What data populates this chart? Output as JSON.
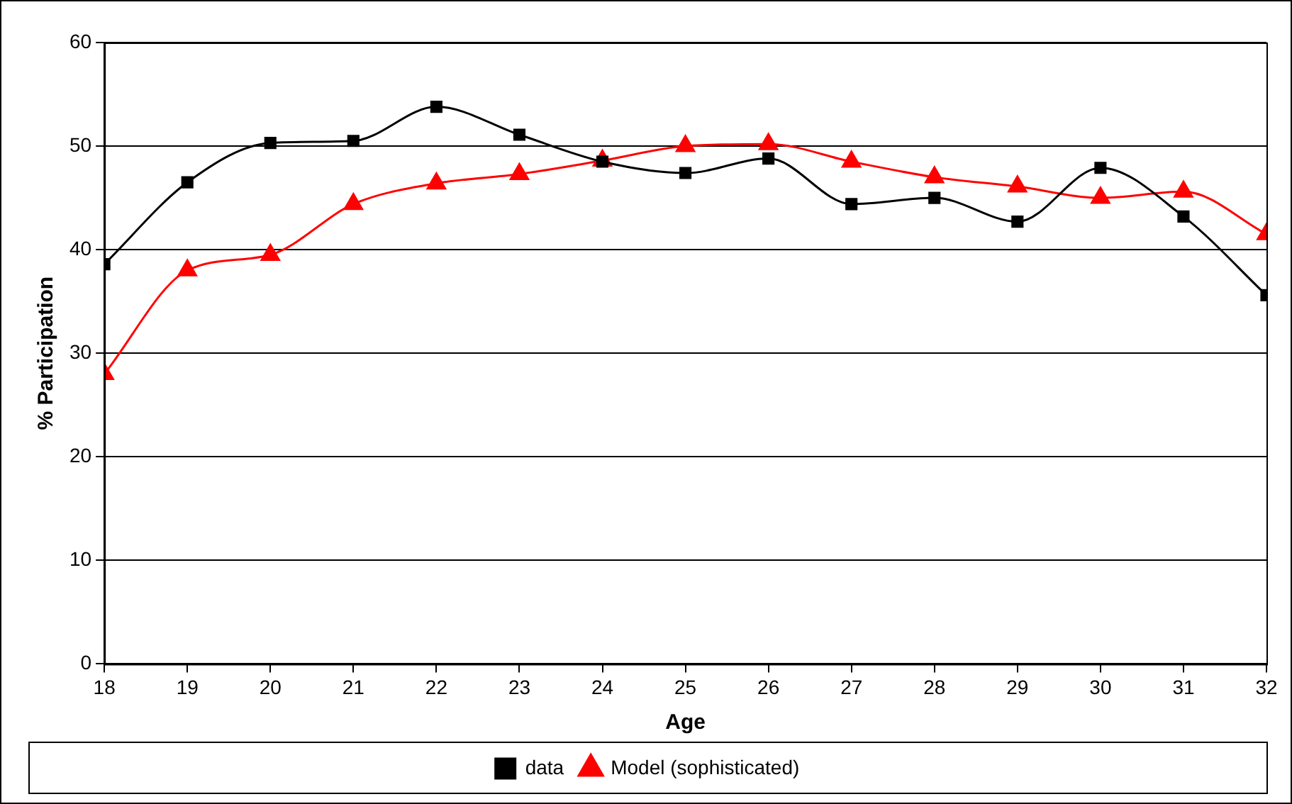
{
  "chart_data": {
    "type": "line",
    "xlabel": "Age",
    "ylabel": "% Participation",
    "x": [
      18,
      19,
      20,
      21,
      22,
      23,
      24,
      25,
      26,
      27,
      28,
      29,
      30,
      31,
      32
    ],
    "xlim": [
      18,
      32
    ],
    "xticks": [
      18,
      19,
      20,
      21,
      22,
      23,
      24,
      25,
      26,
      27,
      28,
      29,
      30,
      31,
      32
    ],
    "ylim": [
      0,
      60
    ],
    "yticks": [
      0,
      10,
      20,
      30,
      40,
      50,
      60
    ],
    "grid": "y",
    "legend": "bottom",
    "series": [
      {
        "name": "data",
        "color": "#000000",
        "marker": "square",
        "values": [
          38.6,
          46.5,
          50.3,
          50.5,
          53.8,
          51.1,
          48.5,
          47.4,
          48.8,
          44.4,
          45,
          42.7,
          47.9,
          43.2,
          35.6
        ]
      },
      {
        "name": "Model (sophisticated)",
        "color": "#ff0000",
        "marker": "triangle",
        "values": [
          28,
          38,
          39.5,
          44.4,
          46.4,
          47.3,
          48.6,
          50,
          50.2,
          48.5,
          47,
          46.1,
          45,
          45.6,
          41.5
        ]
      }
    ]
  }
}
